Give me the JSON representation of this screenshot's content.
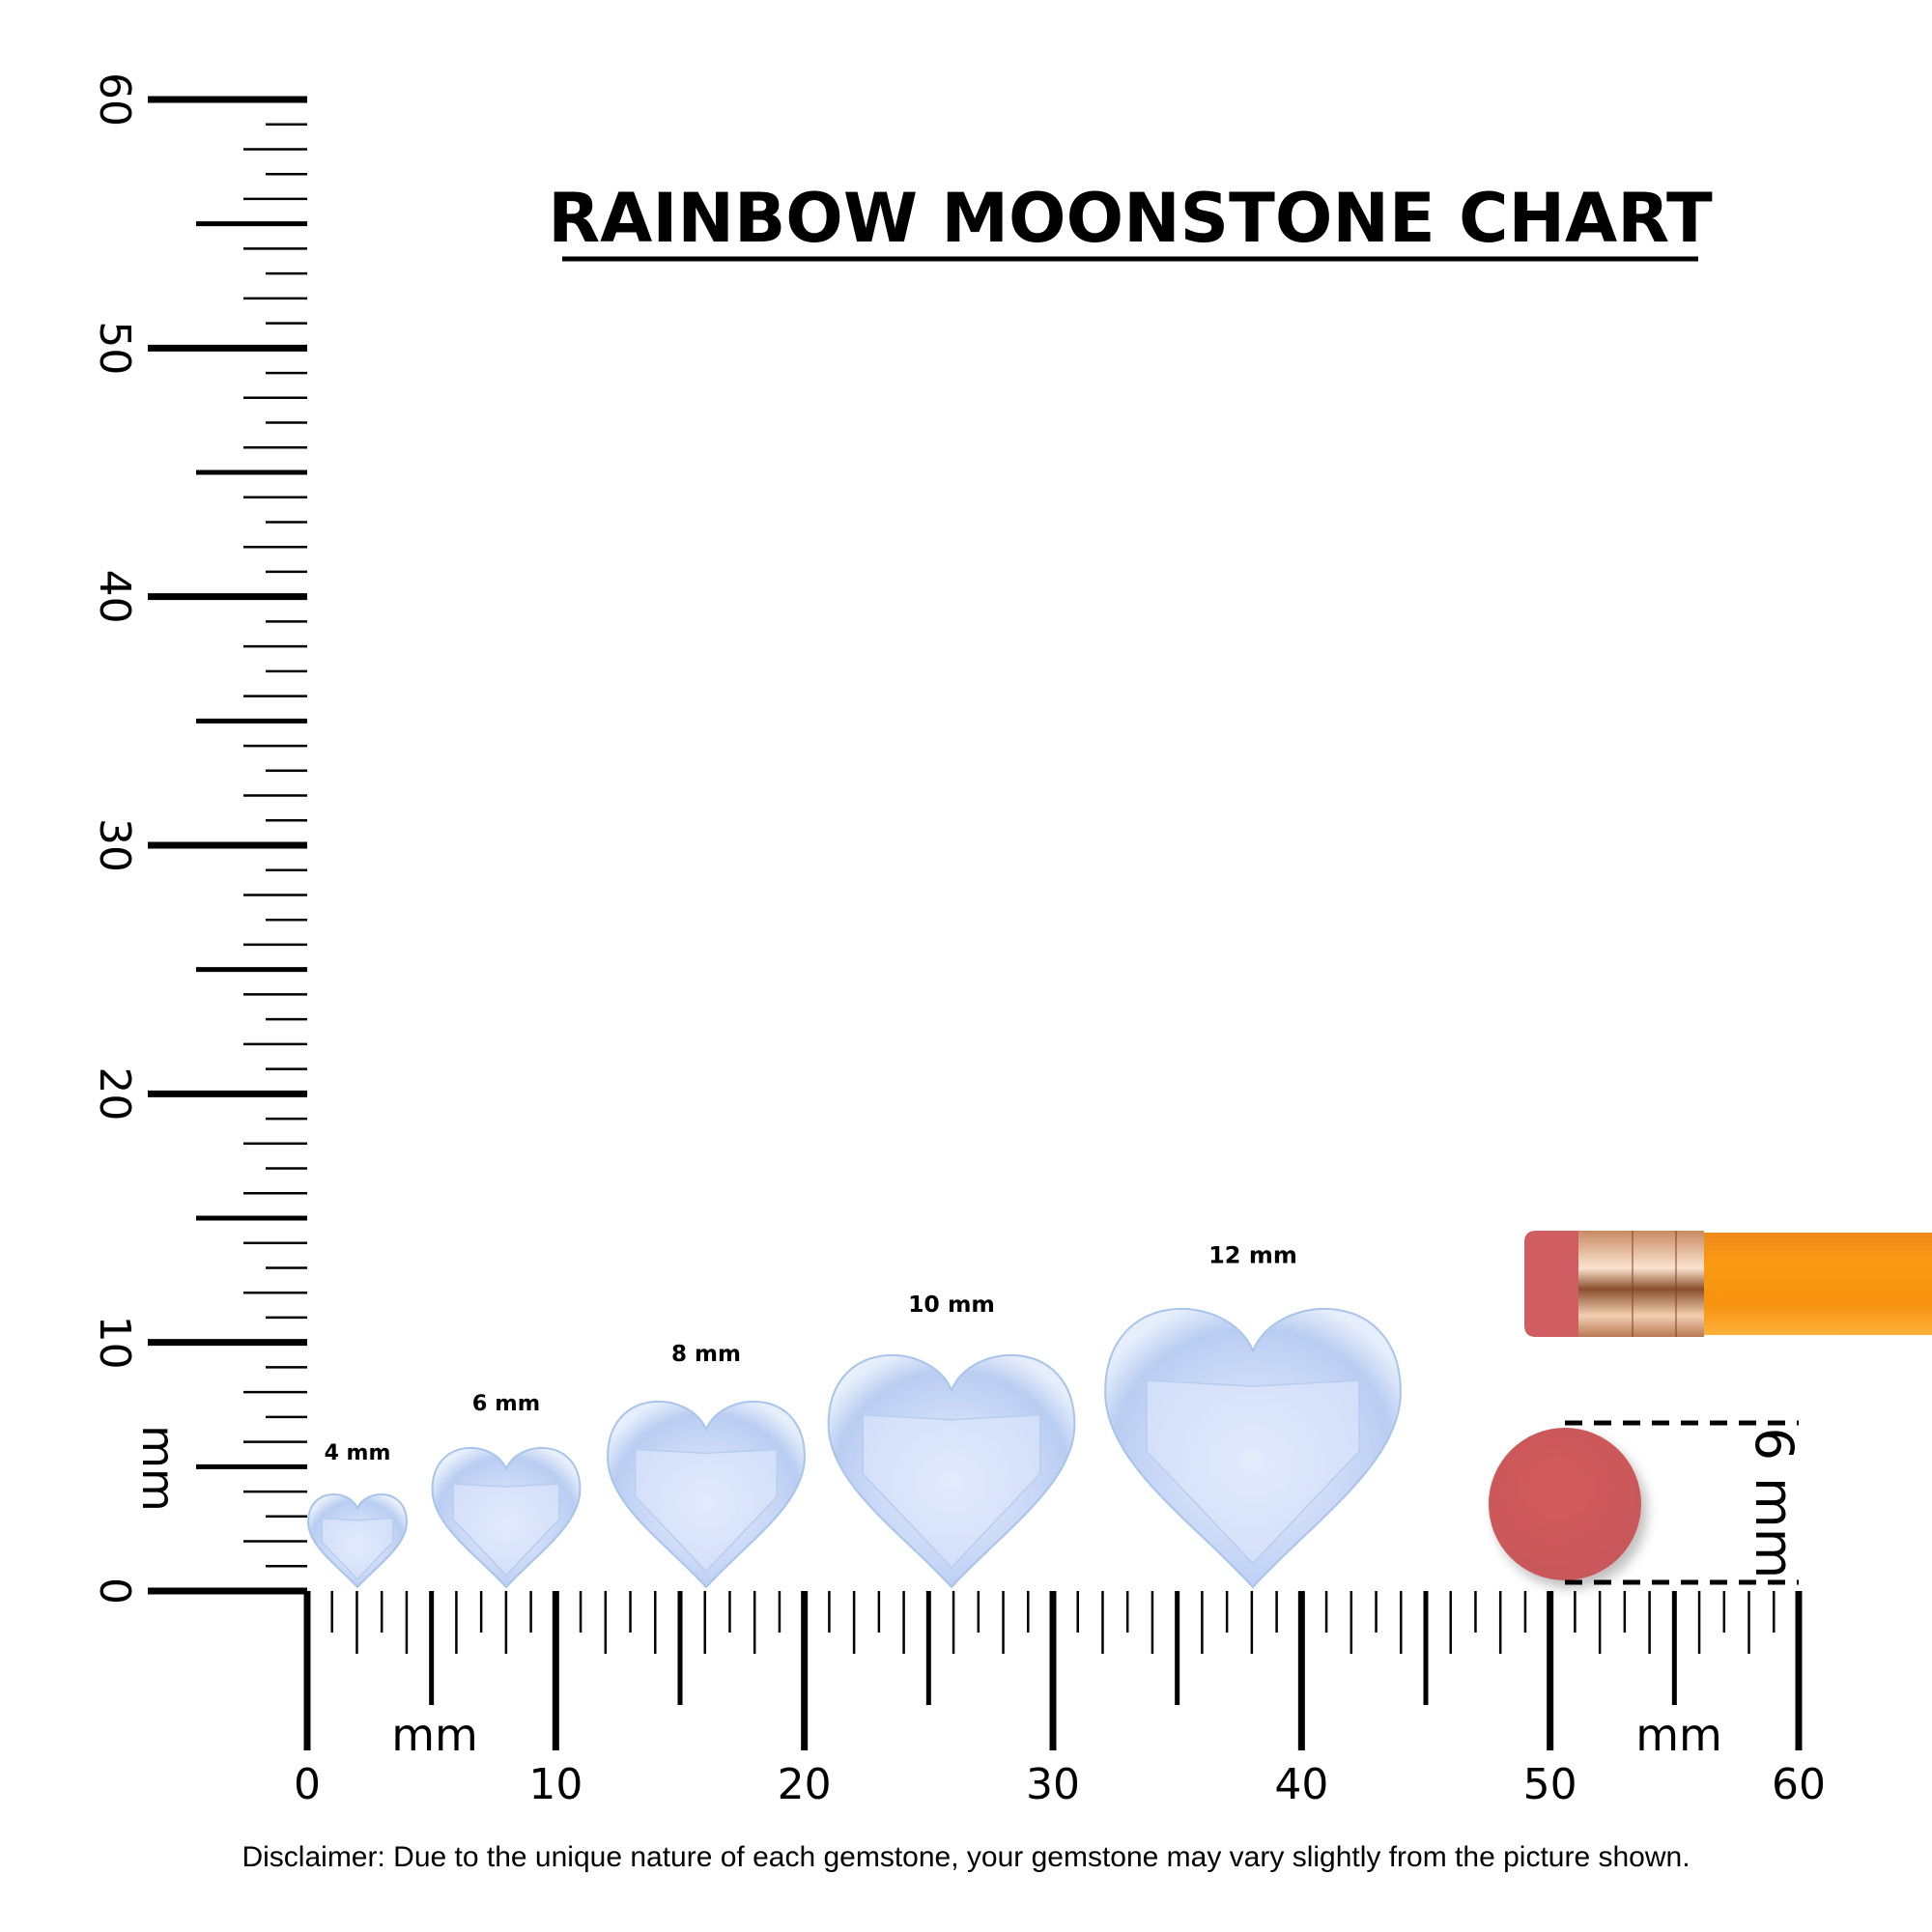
{
  "chart_data": {
    "type": "other",
    "title": "RAINBOW MOONSTONE CHART",
    "ruler": {
      "unit": "mm",
      "min": 0,
      "max": 60,
      "major_step": 10,
      "tick_labels": [
        "0",
        "10",
        "20",
        "30",
        "40",
        "50",
        "60"
      ],
      "horizontal_unit_label": "mm",
      "horizontal_unit_label_right": "mm",
      "vertical_unit_label": "mm"
    },
    "gemstones": [
      {
        "label": "4 mm",
        "size_mm": 4
      },
      {
        "label": "6 mm",
        "size_mm": 6
      },
      {
        "label": "8 mm",
        "size_mm": 8
      },
      {
        "label": "10 mm",
        "size_mm": 10
      },
      {
        "label": "12 mm",
        "size_mm": 12
      }
    ],
    "gem_shape": "heart",
    "reference": {
      "object": "pencil eraser",
      "size_mm": 6,
      "label": "6 mm"
    },
    "colors": {
      "gem_fill": "#cfdcf8",
      "gem_edge": "#a9c4ea",
      "eraser": "#d05a5a",
      "pencil": "#f7941d",
      "ferrule": "#d9a27a"
    },
    "disclaimer": "Disclaimer: Due to the unique nature of each gemstone, your gemstone may vary slightly from the picture shown."
  }
}
